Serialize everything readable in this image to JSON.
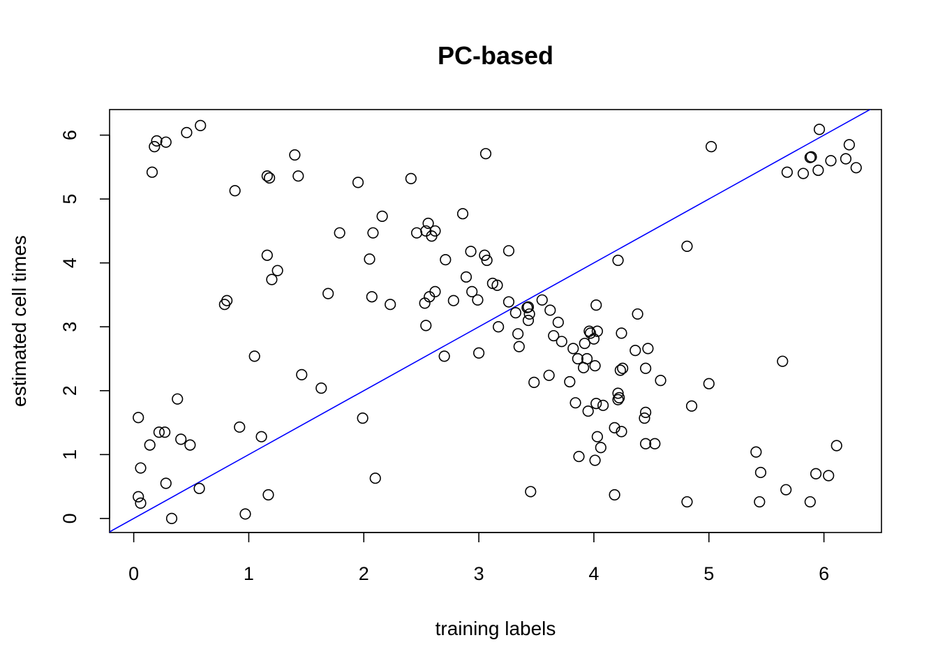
{
  "chart_data": {
    "type": "scatter",
    "title": "PC-based",
    "xlabel": "training labels",
    "ylabel": "estimated cell times",
    "xlim": [
      -0.21,
      6.5
    ],
    "ylim": [
      -0.22,
      6.4
    ],
    "xticks": [
      0,
      1,
      2,
      3,
      4,
      5,
      6
    ],
    "yticks": [
      0,
      1,
      2,
      3,
      4,
      5,
      6
    ],
    "grid": false,
    "reference_line": {
      "slope": 1,
      "intercept": 0,
      "color": "#0000ff"
    },
    "point_color": "#000000",
    "points": [
      [
        0.04,
        1.58
      ],
      [
        0.06,
        0.79
      ],
      [
        0.04,
        0.34
      ],
      [
        0.06,
        0.24
      ],
      [
        0.14,
        1.15
      ],
      [
        0.22,
        1.35
      ],
      [
        0.27,
        1.35
      ],
      [
        0.28,
        0.55
      ],
      [
        0.33,
        0.0
      ],
      [
        0.38,
        1.87
      ],
      [
        0.41,
        1.24
      ],
      [
        0.49,
        1.15
      ],
      [
        0.57,
        0.47
      ],
      [
        0.16,
        5.42
      ],
      [
        0.18,
        5.82
      ],
      [
        0.2,
        5.91
      ],
      [
        0.28,
        5.89
      ],
      [
        0.46,
        6.04
      ],
      [
        0.58,
        6.15
      ],
      [
        0.79,
        3.35
      ],
      [
        0.81,
        3.41
      ],
      [
        0.88,
        5.13
      ],
      [
        0.92,
        1.43
      ],
      [
        0.97,
        0.07
      ],
      [
        1.05,
        2.54
      ],
      [
        1.11,
        1.28
      ],
      [
        1.16,
        4.12
      ],
      [
        1.16,
        5.36
      ],
      [
        1.17,
        0.37
      ],
      [
        1.18,
        5.33
      ],
      [
        1.2,
        3.74
      ],
      [
        1.25,
        3.88
      ],
      [
        1.4,
        5.69
      ],
      [
        1.43,
        5.36
      ],
      [
        1.46,
        2.25
      ],
      [
        1.63,
        2.04
      ],
      [
        1.69,
        3.52
      ],
      [
        1.79,
        4.47
      ],
      [
        1.95,
        5.26
      ],
      [
        1.99,
        1.57
      ],
      [
        2.05,
        4.06
      ],
      [
        2.07,
        3.47
      ],
      [
        2.08,
        4.47
      ],
      [
        2.1,
        0.63
      ],
      [
        2.16,
        4.73
      ],
      [
        2.23,
        3.35
      ],
      [
        2.41,
        5.32
      ],
      [
        2.46,
        4.47
      ],
      [
        2.53,
        3.37
      ],
      [
        2.54,
        4.5
      ],
      [
        2.54,
        3.02
      ],
      [
        2.56,
        4.62
      ],
      [
        2.57,
        3.47
      ],
      [
        2.59,
        4.42
      ],
      [
        2.62,
        4.5
      ],
      [
        2.62,
        3.55
      ],
      [
        2.7,
        2.54
      ],
      [
        2.71,
        4.05
      ],
      [
        2.78,
        3.41
      ],
      [
        2.86,
        4.77
      ],
      [
        2.89,
        3.78
      ],
      [
        2.93,
        4.18
      ],
      [
        2.94,
        3.55
      ],
      [
        2.99,
        3.42
      ],
      [
        3.0,
        2.59
      ],
      [
        3.05,
        4.12
      ],
      [
        3.06,
        5.71
      ],
      [
        3.07,
        4.04
      ],
      [
        3.12,
        3.68
      ],
      [
        3.16,
        3.65
      ],
      [
        3.17,
        3.0
      ],
      [
        3.26,
        4.19
      ],
      [
        3.26,
        3.39
      ],
      [
        3.32,
        3.22
      ],
      [
        3.34,
        2.89
      ],
      [
        3.35,
        2.69
      ],
      [
        3.42,
        3.3
      ],
      [
        3.43,
        3.31
      ],
      [
        3.43,
        3.1
      ],
      [
        3.44,
        3.2
      ],
      [
        3.45,
        0.42
      ],
      [
        3.48,
        2.13
      ],
      [
        3.55,
        3.42
      ],
      [
        3.61,
        2.24
      ],
      [
        3.62,
        3.26
      ],
      [
        3.65,
        2.86
      ],
      [
        3.69,
        3.07
      ],
      [
        3.72,
        2.77
      ],
      [
        3.79,
        2.14
      ],
      [
        3.82,
        2.66
      ],
      [
        3.84,
        1.81
      ],
      [
        3.86,
        2.5
      ],
      [
        3.87,
        0.97
      ],
      [
        3.91,
        2.36
      ],
      [
        3.92,
        2.74
      ],
      [
        3.94,
        2.5
      ],
      [
        3.95,
        1.68
      ],
      [
        3.96,
        2.93
      ],
      [
        3.97,
        2.9
      ],
      [
        4.0,
        2.81
      ],
      [
        4.01,
        2.39
      ],
      [
        4.01,
        0.91
      ],
      [
        4.02,
        3.34
      ],
      [
        4.02,
        1.8
      ],
      [
        4.03,
        1.28
      ],
      [
        4.03,
        2.93
      ],
      [
        4.06,
        1.11
      ],
      [
        4.08,
        1.77
      ],
      [
        4.18,
        1.42
      ],
      [
        4.18,
        0.37
      ],
      [
        4.21,
        4.04
      ],
      [
        4.21,
        1.96
      ],
      [
        4.21,
        1.86
      ],
      [
        4.22,
        1.89
      ],
      [
        4.23,
        2.32
      ],
      [
        4.24,
        1.36
      ],
      [
        4.24,
        2.9
      ],
      [
        4.25,
        2.35
      ],
      [
        4.36,
        2.63
      ],
      [
        4.38,
        3.2
      ],
      [
        4.44,
        1.57
      ],
      [
        4.45,
        1.66
      ],
      [
        4.45,
        2.35
      ],
      [
        4.45,
        1.17
      ],
      [
        4.47,
        2.66
      ],
      [
        4.53,
        1.17
      ],
      [
        4.58,
        2.16
      ],
      [
        4.81,
        4.26
      ],
      [
        4.81,
        0.26
      ],
      [
        4.85,
        1.76
      ],
      [
        5.0,
        2.11
      ],
      [
        5.02,
        5.82
      ],
      [
        5.41,
        1.04
      ],
      [
        5.44,
        0.26
      ],
      [
        5.45,
        0.72
      ],
      [
        5.64,
        2.46
      ],
      [
        5.67,
        0.45
      ],
      [
        5.68,
        5.42
      ],
      [
        5.82,
        5.4
      ],
      [
        5.88,
        0.26
      ],
      [
        5.88,
        5.65
      ],
      [
        5.89,
        5.66
      ],
      [
        5.93,
        0.7
      ],
      [
        5.95,
        5.45
      ],
      [
        5.96,
        6.09
      ],
      [
        6.04,
        0.67
      ],
      [
        6.06,
        5.6
      ],
      [
        6.11,
        1.14
      ],
      [
        6.19,
        5.63
      ],
      [
        6.22,
        5.85
      ],
      [
        6.28,
        5.49
      ]
    ]
  }
}
